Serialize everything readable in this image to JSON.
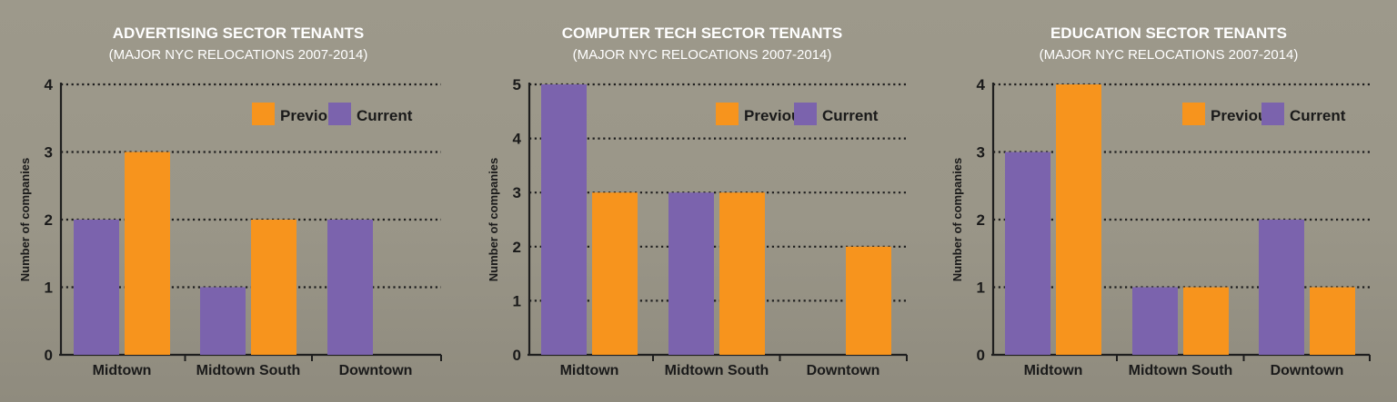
{
  "chart_data": [
    {
      "type": "bar",
      "title": "ADVERTISING SECTOR TENANTS",
      "subtitle": "(MAJOR NYC RELOCATIONS 2007-2014)",
      "ylabel": "Number of companies",
      "xlabel": "",
      "categories": [
        "Midtown",
        "Midtown South",
        "Downtown"
      ],
      "ylim": [
        0,
        4
      ],
      "yticks": [
        0,
        1,
        2,
        3,
        4
      ],
      "grid": "dotted horizontal",
      "legend_position": "top-right",
      "series": [
        {
          "name": "Current",
          "color": "#7b63ad",
          "values": [
            2,
            1,
            2
          ]
        },
        {
          "name": "Previous",
          "color": "#f7941d",
          "values": [
            3,
            2,
            0
          ]
        }
      ]
    },
    {
      "type": "bar",
      "title": "COMPUTER TECH SECTOR TENANTS",
      "subtitle": "(MAJOR NYC RELOCATIONS 2007-2014)",
      "ylabel": "Number of companies",
      "xlabel": "",
      "categories": [
        "Midtown",
        "Midtown South",
        "Downtown"
      ],
      "ylim": [
        0,
        5
      ],
      "yticks": [
        0,
        1,
        2,
        3,
        4,
        5
      ],
      "grid": "dotted horizontal",
      "legend_position": "top-right",
      "series": [
        {
          "name": "Current",
          "color": "#7b63ad",
          "values": [
            5,
            3,
            0
          ]
        },
        {
          "name": "Previous",
          "color": "#f7941d",
          "values": [
            3,
            3,
            2
          ]
        }
      ]
    },
    {
      "type": "bar",
      "title": "EDUCATION SECTOR TENANTS",
      "subtitle": "(MAJOR NYC RELOCATIONS 2007-2014)",
      "ylabel": "Number of companies",
      "xlabel": "",
      "categories": [
        "Midtown",
        "Midtown South",
        "Downtown"
      ],
      "ylim": [
        0,
        4
      ],
      "yticks": [
        0,
        1,
        2,
        3,
        4
      ],
      "grid": "dotted horizontal",
      "legend_position": "top-right",
      "series": [
        {
          "name": "Current",
          "color": "#7b63ad",
          "values": [
            3,
            1,
            2
          ]
        },
        {
          "name": "Previous",
          "color": "#f7941d",
          "values": [
            4,
            1,
            1
          ]
        }
      ]
    }
  ],
  "legend": {
    "previous_label": "Previous",
    "current_label": "Current"
  }
}
